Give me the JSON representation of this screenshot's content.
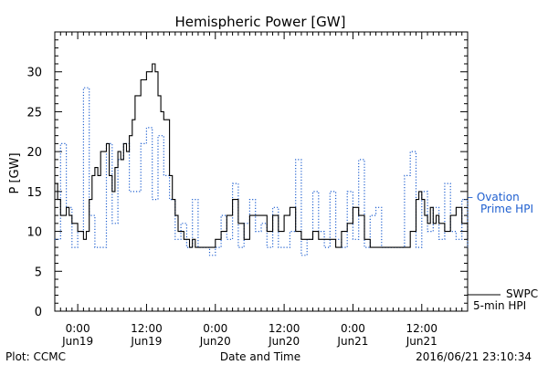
{
  "chart_data": {
    "type": "line",
    "title": "Hemispheric Power [GW]",
    "xlabel": "Date and Time",
    "ylabel": "P [GW]",
    "ylim": [
      0,
      35
    ],
    "y_ticks": [
      0,
      5,
      10,
      15,
      20,
      25,
      30
    ],
    "xlim_hours": [
      -4,
      68
    ],
    "x_ticks": [
      {
        "hour": 0,
        "time": "0:00",
        "date": "Jun19"
      },
      {
        "hour": 12,
        "time": "12:00",
        "date": "Jun19"
      },
      {
        "hour": 24,
        "time": "0:00",
        "date": "Jun20"
      },
      {
        "hour": 36,
        "time": "12:00",
        "date": "Jun20"
      },
      {
        "hour": 48,
        "time": "0:00",
        "date": "Jun21"
      },
      {
        "hour": 60,
        "time": "12:00",
        "date": "Jun21"
      }
    ],
    "grid": false,
    "series": [
      {
        "name": "SWPC 5-min HPI",
        "label_lines": [
          "SWPC",
          "5-min HPI"
        ],
        "style": "solid",
        "color": "#000000",
        "x": [
          -4,
          -3.5,
          -3,
          -2,
          -1.5,
          -1,
          0,
          1,
          1.5,
          2,
          2.5,
          3,
          3.5,
          4,
          5,
          5.5,
          6,
          6.5,
          7,
          7.5,
          8,
          8.5,
          9,
          9.5,
          10,
          11,
          12,
          12.5,
          13,
          13.5,
          14,
          14.5,
          15,
          16,
          16.5,
          17,
          17.5,
          18,
          18.5,
          19,
          19.5,
          20,
          20.5,
          21,
          22,
          23,
          24,
          25,
          26,
          27,
          28,
          29,
          30,
          31,
          32,
          33,
          34,
          35,
          36,
          37,
          38,
          39,
          40,
          41,
          42,
          43,
          44,
          45,
          46,
          47,
          48,
          49,
          50,
          51,
          52,
          53,
          54,
          55,
          56,
          57,
          58,
          59,
          59.5,
          60,
          60.5,
          61,
          61.5,
          62,
          62.5,
          63,
          64,
          65,
          66,
          67,
          68
        ],
        "y": [
          16,
          14,
          12,
          13,
          12,
          11,
          10,
          9,
          10,
          14,
          17,
          18,
          17,
          20,
          21,
          17,
          15,
          18,
          20,
          19,
          21,
          20,
          22,
          24,
          27,
          29,
          30,
          30,
          31,
          30,
          27,
          25,
          24,
          17,
          14,
          12,
          10,
          10,
          9,
          9,
          8,
          9,
          8,
          8,
          8,
          8,
          9,
          10,
          12,
          14,
          11,
          9,
          12,
          12,
          12,
          10,
          12,
          10,
          12,
          13,
          10,
          9,
          9,
          10,
          9,
          9,
          9,
          8,
          10,
          11,
          13,
          12,
          9,
          8,
          8,
          8,
          8,
          8,
          8,
          8,
          10,
          14,
          15,
          14,
          12,
          11,
          13,
          11,
          12,
          11,
          10,
          12,
          13,
          11,
          9
        ]
      },
      {
        "name": "Ovation Prime HPI",
        "label_lines": [
          "– Ovation",
          "Prime HPI"
        ],
        "style": "dotted",
        "color": "#2060d0",
        "x": [
          -4,
          -3,
          -2,
          -1,
          0,
          1,
          2,
          3,
          4,
          5,
          6,
          7,
          8,
          9,
          10,
          11,
          12,
          13,
          14,
          15,
          16,
          17,
          18,
          19,
          20,
          21,
          22,
          23,
          24,
          25,
          26,
          27,
          28,
          29,
          30,
          31,
          32,
          33,
          34,
          35,
          36,
          37,
          38,
          39,
          40,
          41,
          42,
          43,
          44,
          45,
          46,
          47,
          48,
          49,
          50,
          51,
          52,
          53,
          54,
          55,
          56,
          57,
          58,
          59,
          60,
          61,
          62,
          63,
          64,
          65,
          66,
          67,
          68
        ],
        "y": [
          9,
          21,
          13,
          8,
          10,
          28,
          12,
          8,
          8,
          21,
          11,
          19,
          21,
          15,
          15,
          21,
          23,
          14,
          22,
          17,
          14,
          9,
          11,
          8,
          14,
          8,
          8,
          7,
          8,
          12,
          9,
          16,
          8,
          11,
          14,
          10,
          11,
          8,
          13,
          8,
          8,
          10,
          19,
          7,
          9,
          15,
          10,
          8,
          15,
          9,
          8,
          15,
          9,
          19,
          8,
          12,
          13,
          8,
          8,
          8,
          8,
          17,
          20,
          8,
          15,
          10,
          13,
          9,
          16,
          10,
          9,
          14,
          8
        ]
      }
    ]
  },
  "footer": {
    "plot_credit": "Plot: CCMC",
    "timestamp": "2016/06/21 23:10:34"
  }
}
